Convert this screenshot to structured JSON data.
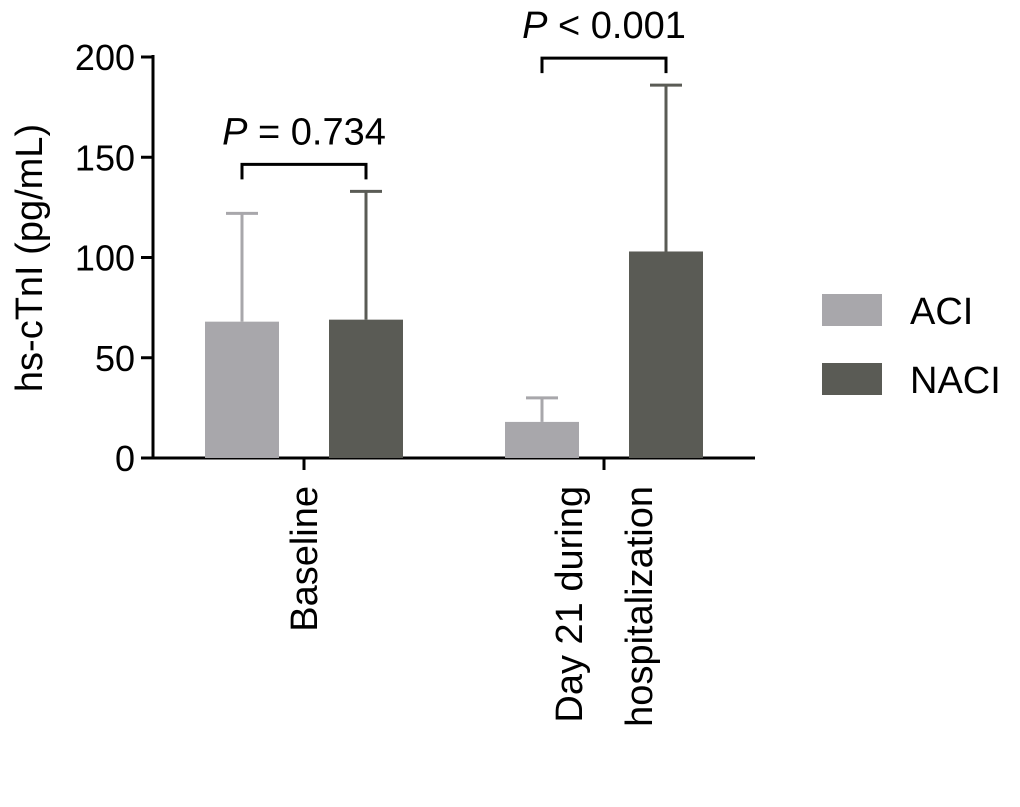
{
  "chart_data": {
    "type": "bar",
    "ylabel": "hs-cTnI (pg/mL)",
    "xlabel": "",
    "ylim": [
      0,
      200
    ],
    "yticks": [
      0,
      50,
      100,
      150,
      200
    ],
    "categories": [
      {
        "lines": [
          "Baseline"
        ]
      },
      {
        "lines": [
          "Day 21 during",
          "hospitalization"
        ]
      }
    ],
    "series": [
      {
        "name": "ACI",
        "color": "#a8a7ab",
        "values": [
          68,
          18
        ],
        "error_upper": [
          122,
          30
        ]
      },
      {
        "name": "NACI",
        "color": "#5a5b55",
        "values": [
          69,
          103
        ],
        "error_upper": [
          133,
          186
        ]
      }
    ],
    "comparisons": [
      {
        "category_index": 0,
        "p_symbol": "P",
        "p_text": " = 0.734"
      },
      {
        "category_index": 1,
        "p_symbol": "P",
        "p_text": " < 0.001"
      }
    ],
    "legend_position": "right",
    "grid": false
  }
}
